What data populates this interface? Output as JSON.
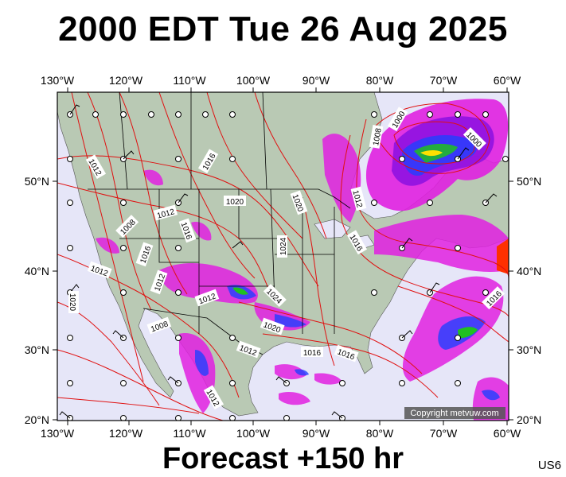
{
  "title": "2000 EDT Tue 26 Aug 2025",
  "forecast": "Forecast +150 hr",
  "product_code": "US6",
  "copyright": "Copyright metvuw.com",
  "axes": {
    "top_lon_labels": [
      "130°W",
      "120°W",
      "110°W",
      "100°W",
      "90°W",
      "80°W",
      "70°W",
      "60°W"
    ],
    "bottom_lon_labels": [
      "130°W",
      "120°W",
      "110°W",
      "100°W",
      "90°W",
      "80°W",
      "70°W",
      "60°W"
    ],
    "left_lat_labels": [
      "50°N",
      "40°N",
      "30°N",
      "20°N"
    ],
    "right_lat_labels": [
      "50°N",
      "40°N",
      "30°N",
      "20°N"
    ]
  },
  "isobar_labels": [
    "1000",
    "1000",
    "1008",
    "1012",
    "1016",
    "1020",
    "1024",
    "1012",
    "1012",
    "1008",
    "1016",
    "1012",
    "1016",
    "1012",
    "1020",
    "1024",
    "1016",
    "1020",
    "1016",
    "1016",
    "1012",
    "1008",
    "1012",
    "1016",
    "1012",
    "1016",
    "1012"
  ],
  "colors": {
    "ocean": "#e6e6f8",
    "land": "#b9c9b4",
    "isobar": "#e01010",
    "border": "#000000",
    "precip_magenta": "#e020e0",
    "precip_purple": "#8a10e0",
    "precip_blue": "#2040ff",
    "precip_green": "#20c020",
    "precip_yellow": "#ffe000",
    "precip_red": "#ff3000"
  },
  "icons": {
    "station": "open-circle-station-icon",
    "wind_barb": "wind-barb-icon"
  }
}
